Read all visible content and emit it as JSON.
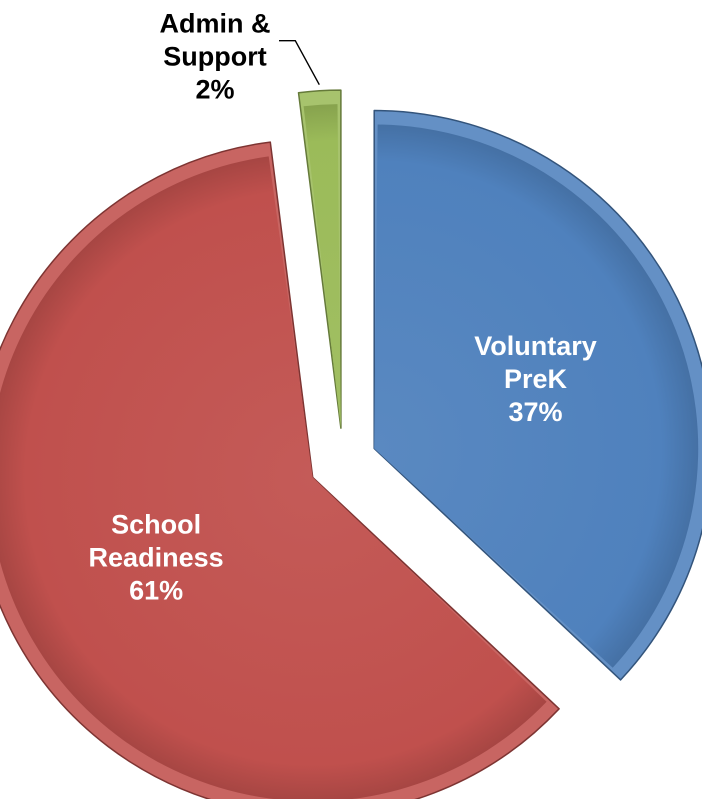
{
  "chart_data": {
    "type": "pie",
    "title": "",
    "start_angle_deg": 0,
    "direction": "clockwise",
    "explode": "all",
    "slices": [
      {
        "label_lines": [
          "Voluntary",
          "PreK",
          "37%"
        ],
        "value": 37,
        "color": "#4f81bd",
        "label_position": "inside",
        "label_color": "#ffffff"
      },
      {
        "label_lines": [
          "School",
          "Readiness",
          "61%"
        ],
        "value": 61,
        "color": "#c0504d",
        "label_position": "inside",
        "label_color": "#ffffff"
      },
      {
        "label_lines": [
          "Admin &",
          "Support",
          "2%"
        ],
        "value": 2,
        "color": "#9bbb59",
        "label_position": "outside-top-left",
        "label_color": "#000000"
      }
    ]
  }
}
